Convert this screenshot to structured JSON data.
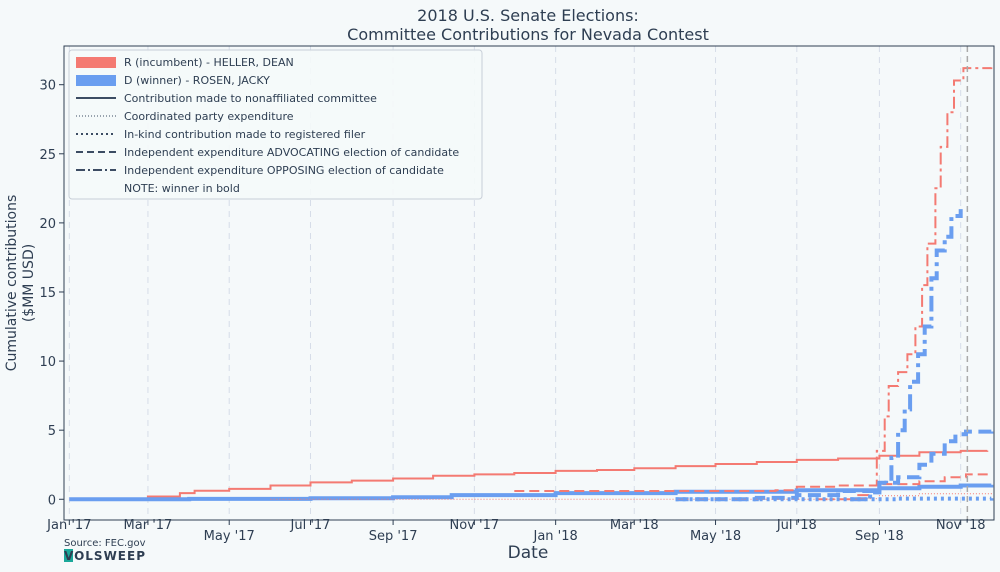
{
  "chart_data": {
    "type": "line",
    "title_line1": "2018 U.S. Senate Elections:",
    "title_line2": "Committee Contributions for Nevada Contest",
    "xlabel": "Date",
    "ylabel_line1": "Cumulative contributions",
    "ylabel_line2": "($MM USD)",
    "source": "Source: FEC.gov",
    "logo_text": "VOLSWEEP",
    "grid": true,
    "legend_placement": "top-left",
    "xlim": [
      "2016-12-28",
      "2018-11-26"
    ],
    "ylim": [
      -1.5,
      32.8
    ],
    "yticks": [
      0,
      5,
      10,
      15,
      20,
      25,
      30
    ],
    "xticks": [
      {
        "date": "2017-01-01",
        "label": "Jan '17",
        "row": 0
      },
      {
        "date": "2017-03-01",
        "label": "Mar '17",
        "row": 0
      },
      {
        "date": "2017-05-01",
        "label": "May '17",
        "row": 1
      },
      {
        "date": "2017-07-01",
        "label": "Jul '17",
        "row": 0
      },
      {
        "date": "2017-09-01",
        "label": "Sep '17",
        "row": 1
      },
      {
        "date": "2017-11-01",
        "label": "Nov '17",
        "row": 0
      },
      {
        "date": "2018-01-01",
        "label": "Jan '18",
        "row": 1
      },
      {
        "date": "2018-03-01",
        "label": "Mar '18",
        "row": 0
      },
      {
        "date": "2018-05-01",
        "label": "May '18",
        "row": 1
      },
      {
        "date": "2018-07-01",
        "label": "Jul '18",
        "row": 0
      },
      {
        "date": "2018-09-01",
        "label": "Sep '18",
        "row": 1
      },
      {
        "date": "2018-11-01",
        "label": "Nov '18",
        "row": 0
      }
    ],
    "election_day": "2018-11-06",
    "colors": {
      "republican": "#f47a72",
      "democrat": "#6a9ef0",
      "text": "#2e3e52",
      "grid": "#d6dde8",
      "election_line": "#aaaaaa"
    },
    "legend": [
      {
        "label": "R (incumbent) - HELLER, DEAN",
        "kind": "patch",
        "color": "#f47a72"
      },
      {
        "label": "D (winner) - ROSEN, JACKY",
        "kind": "patch",
        "color": "#6a9ef0"
      },
      {
        "label": "Contribution made to nonaffiliated committee",
        "kind": "line",
        "style": "solid"
      },
      {
        "label": "Coordinated party expenditure",
        "kind": "line",
        "style": "thin-dotted"
      },
      {
        "label": "In-kind contribution made to registered filer",
        "kind": "line",
        "style": "dotted"
      },
      {
        "label": "Independent expenditure ADVOCATING election of candidate",
        "kind": "line",
        "style": "dashed"
      },
      {
        "label": "Independent expenditure OPPOSING election of candidate",
        "kind": "line",
        "style": "dashdot"
      },
      {
        "label": "NOTE: winner in bold",
        "kind": "none"
      }
    ],
    "series": [
      {
        "name": "R (incumbent) - HELLER, DEAN",
        "type": "Contribution made to nonaffiliated committee",
        "party": "R",
        "style": "solid",
        "bold": false,
        "points": [
          [
            "2017-01-01",
            0
          ],
          [
            "2017-02-01",
            0.05
          ],
          [
            "2017-03-01",
            0.2
          ],
          [
            "2017-03-25",
            0.45
          ],
          [
            "2017-04-05",
            0.62
          ],
          [
            "2017-05-01",
            0.75
          ],
          [
            "2017-06-01",
            1.0
          ],
          [
            "2017-07-01",
            1.22
          ],
          [
            "2017-08-01",
            1.35
          ],
          [
            "2017-09-01",
            1.5
          ],
          [
            "2017-10-01",
            1.7
          ],
          [
            "2017-11-01",
            1.8
          ],
          [
            "2017-12-01",
            1.9
          ],
          [
            "2018-01-01",
            2.05
          ],
          [
            "2018-02-01",
            2.12
          ],
          [
            "2018-03-01",
            2.25
          ],
          [
            "2018-04-01",
            2.4
          ],
          [
            "2018-05-01",
            2.55
          ],
          [
            "2018-06-01",
            2.7
          ],
          [
            "2018-07-01",
            2.85
          ],
          [
            "2018-08-01",
            2.95
          ],
          [
            "2018-09-01",
            3.15
          ],
          [
            "2018-10-01",
            3.4
          ],
          [
            "2018-11-01",
            3.5
          ],
          [
            "2018-11-21",
            3.52
          ]
        ]
      },
      {
        "name": "D (winner) - ROSEN, JACKY",
        "type": "Contribution made to nonaffiliated committee",
        "party": "D",
        "style": "solid",
        "bold": true,
        "points": [
          [
            "2017-01-01",
            0
          ],
          [
            "2017-04-01",
            0.03
          ],
          [
            "2017-07-01",
            0.08
          ],
          [
            "2017-09-01",
            0.15
          ],
          [
            "2017-10-15",
            0.3
          ],
          [
            "2018-01-01",
            0.45
          ],
          [
            "2018-04-01",
            0.55
          ],
          [
            "2018-07-01",
            0.65
          ],
          [
            "2018-09-01",
            0.8
          ],
          [
            "2018-10-01",
            0.9
          ],
          [
            "2018-11-01",
            1.0
          ],
          [
            "2018-11-24",
            1.05
          ]
        ]
      },
      {
        "name": "R (incumbent) - HELLER, DEAN",
        "type": "Independent expenditure OPPOSING election of candidate",
        "party": "R",
        "style": "dashdot",
        "bold": false,
        "points": [
          [
            "2018-07-15",
            0
          ],
          [
            "2018-08-15",
            0.3
          ],
          [
            "2018-08-25",
            1.0
          ],
          [
            "2018-08-30",
            3.5
          ],
          [
            "2018-09-05",
            6.0
          ],
          [
            "2018-09-08",
            8.2
          ],
          [
            "2018-09-15",
            9.2
          ],
          [
            "2018-09-22",
            10.5
          ],
          [
            "2018-09-28",
            12.5
          ],
          [
            "2018-10-03",
            15.5
          ],
          [
            "2018-10-07",
            18.5
          ],
          [
            "2018-10-13",
            22.5
          ],
          [
            "2018-10-17",
            25.5
          ],
          [
            "2018-10-22",
            28.0
          ],
          [
            "2018-10-27",
            30.3
          ],
          [
            "2018-11-03",
            31.2
          ],
          [
            "2018-11-24",
            31.25
          ]
        ]
      },
      {
        "name": "D (winner) - ROSEN, JACKY",
        "type": "Independent expenditure OPPOSING election of candidate",
        "party": "D",
        "style": "dashdot",
        "bold": true,
        "points": [
          [
            "2018-08-10",
            0
          ],
          [
            "2018-08-25",
            0.5
          ],
          [
            "2018-09-01",
            1.2
          ],
          [
            "2018-09-10",
            3.0
          ],
          [
            "2018-09-15",
            5.0
          ],
          [
            "2018-09-20",
            6.5
          ],
          [
            "2018-09-24",
            8.5
          ],
          [
            "2018-09-30",
            10.5
          ],
          [
            "2018-10-05",
            12.5
          ],
          [
            "2018-10-10",
            16.0
          ],
          [
            "2018-10-14",
            18.0
          ],
          [
            "2018-10-20",
            19.0
          ],
          [
            "2018-10-25",
            20.5
          ],
          [
            "2018-11-01",
            21.0
          ]
        ]
      },
      {
        "name": "R (incumbent) - HELLER, DEAN",
        "type": "Independent expenditure ADVOCATING election of candidate",
        "party": "R",
        "style": "dashed",
        "bold": false,
        "points": [
          [
            "2017-12-01",
            0.6
          ],
          [
            "2018-06-15",
            0.65
          ],
          [
            "2018-07-01",
            0.9
          ],
          [
            "2018-08-01",
            1.0
          ],
          [
            "2018-09-01",
            1.1
          ],
          [
            "2018-10-01",
            1.3
          ],
          [
            "2018-10-20",
            1.6
          ],
          [
            "2018-11-05",
            1.8
          ],
          [
            "2018-11-24",
            1.82
          ]
        ]
      },
      {
        "name": "D (winner) - ROSEN, JACKY",
        "type": "Independent expenditure ADVOCATING election of candidate",
        "party": "D",
        "style": "dashed",
        "bold": true,
        "points": [
          [
            "2018-04-01",
            0
          ],
          [
            "2018-06-01",
            0.1
          ],
          [
            "2018-07-01",
            0.3
          ],
          [
            "2018-08-01",
            0.6
          ],
          [
            "2018-09-01",
            1.2
          ],
          [
            "2018-09-15",
            1.6
          ],
          [
            "2018-10-01",
            2.5
          ],
          [
            "2018-10-10",
            3.3
          ],
          [
            "2018-10-20",
            4.2
          ],
          [
            "2018-10-28",
            4.7
          ],
          [
            "2018-11-05",
            4.9
          ],
          [
            "2018-11-24",
            4.92
          ]
        ]
      },
      {
        "name": "R (incumbent) - HELLER, DEAN",
        "type": "Coordinated party expenditure",
        "party": "R",
        "style": "thin-dotted",
        "bold": false,
        "points": [
          [
            "2017-06-01",
            0
          ],
          [
            "2018-08-15",
            0.05
          ],
          [
            "2018-09-01",
            0.25
          ],
          [
            "2018-10-01",
            0.4
          ],
          [
            "2018-11-24",
            0.5
          ]
        ]
      },
      {
        "name": "D (winner) - ROSEN, JACKY",
        "type": "In-kind contribution made to registered filer",
        "party": "D",
        "style": "dotted",
        "bold": true,
        "points": [
          [
            "2018-04-01",
            0
          ],
          [
            "2018-09-15",
            0.05
          ],
          [
            "2018-11-24",
            0.08
          ]
        ]
      }
    ]
  }
}
